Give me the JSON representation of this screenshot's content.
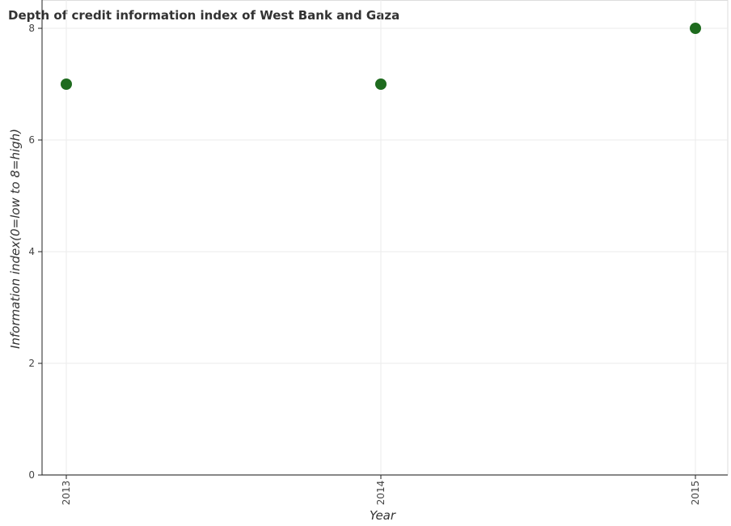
{
  "chart_data": {
    "type": "scatter",
    "title": "Depth of credit information index of West Bank and Gaza",
    "xlabel": "Year",
    "ylabel": "Information index(0=low to 8=high)",
    "categories": [
      "2013",
      "2014",
      "2015"
    ],
    "series": [
      {
        "values": [
          7,
          7,
          8
        ]
      }
    ],
    "ylim": [
      0,
      8
    ],
    "yticks": [
      "0",
      "2",
      "4",
      "6",
      "8"
    ],
    "grid": true,
    "marker_color": "#1e6b1e"
  }
}
